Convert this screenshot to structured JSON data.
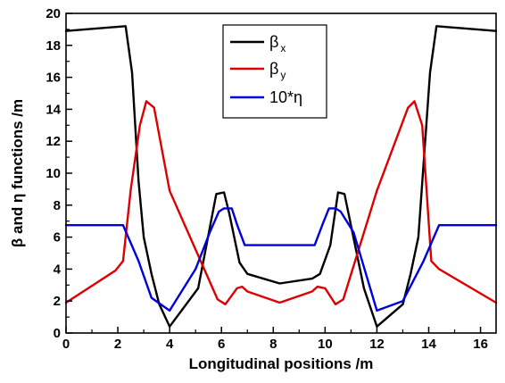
{
  "chart_data": {
    "type": "line",
    "xlabel": "Longitudinal positions /m",
    "ylabel": "β and η functions /m",
    "xlim": [
      0,
      16.6
    ],
    "ylim": [
      0,
      20
    ],
    "xticks": [
      "0",
      "2",
      "4",
      "6",
      "8",
      "10",
      "12",
      "14",
      "16"
    ],
    "yticks": [
      "0",
      "2",
      "4",
      "6",
      "8",
      "10",
      "12",
      "14",
      "16",
      "18",
      "20"
    ],
    "grid": false,
    "legend_position": "top-center",
    "series": [
      {
        "name": "βx",
        "legend_main": "β",
        "legend_sub": "x",
        "color": "#000000",
        "x": [
          0,
          2.3,
          2.55,
          2.8,
          3.0,
          3.3,
          3.6,
          4.0,
          5.1,
          5.8,
          6.1,
          6.3,
          6.7,
          7.0,
          8.25,
          9.5,
          9.8,
          10.2,
          10.5,
          10.75,
          11.5,
          12.0,
          13.0,
          13.3,
          13.6,
          14.05,
          14.3,
          16.6
        ],
        "y": [
          18.9,
          19.2,
          16.3,
          9.5,
          6.0,
          3.7,
          1.8,
          0.4,
          2.8,
          8.7,
          8.8,
          7.5,
          4.4,
          3.7,
          3.1,
          3.4,
          3.7,
          5.5,
          8.8,
          8.7,
          2.8,
          0.4,
          1.8,
          3.7,
          6.0,
          16.3,
          19.2,
          18.9
        ]
      },
      {
        "name": "βy",
        "legend_main": "β",
        "legend_sub": "y",
        "color": "#dd0000",
        "x": [
          0,
          1.9,
          2.2,
          2.5,
          2.85,
          3.1,
          3.4,
          4.0,
          5.85,
          6.15,
          6.6,
          6.8,
          7.0,
          8.25,
          9.5,
          9.7,
          10.0,
          10.4,
          10.7,
          12.0,
          13.2,
          13.45,
          13.75,
          14.1,
          14.4,
          16.6
        ],
        "y": [
          1.9,
          3.9,
          4.5,
          9.0,
          13.0,
          14.5,
          14.1,
          8.9,
          2.1,
          1.8,
          2.8,
          2.9,
          2.6,
          1.9,
          2.6,
          2.9,
          2.8,
          1.8,
          2.1,
          8.9,
          14.1,
          14.5,
          13.0,
          4.5,
          4.0,
          1.9
        ]
      },
      {
        "name": "10*η",
        "legend_main": "10*η",
        "legend_sub": "",
        "color": "#0000dd",
        "x": [
          0,
          2.2,
          2.8,
          3.3,
          4.0,
          5.0,
          5.55,
          5.9,
          6.1,
          6.4,
          6.6,
          6.9,
          9.6,
          9.9,
          10.15,
          10.4,
          10.6,
          11.1,
          12.0,
          13.0,
          13.8,
          14.4,
          16.6
        ],
        "y": [
          6.75,
          6.75,
          4.5,
          2.2,
          1.4,
          4.0,
          6.3,
          7.6,
          7.8,
          7.8,
          6.8,
          5.5,
          5.5,
          6.8,
          7.8,
          7.8,
          7.6,
          6.3,
          1.4,
          2.0,
          4.5,
          6.75,
          6.75
        ]
      }
    ]
  }
}
